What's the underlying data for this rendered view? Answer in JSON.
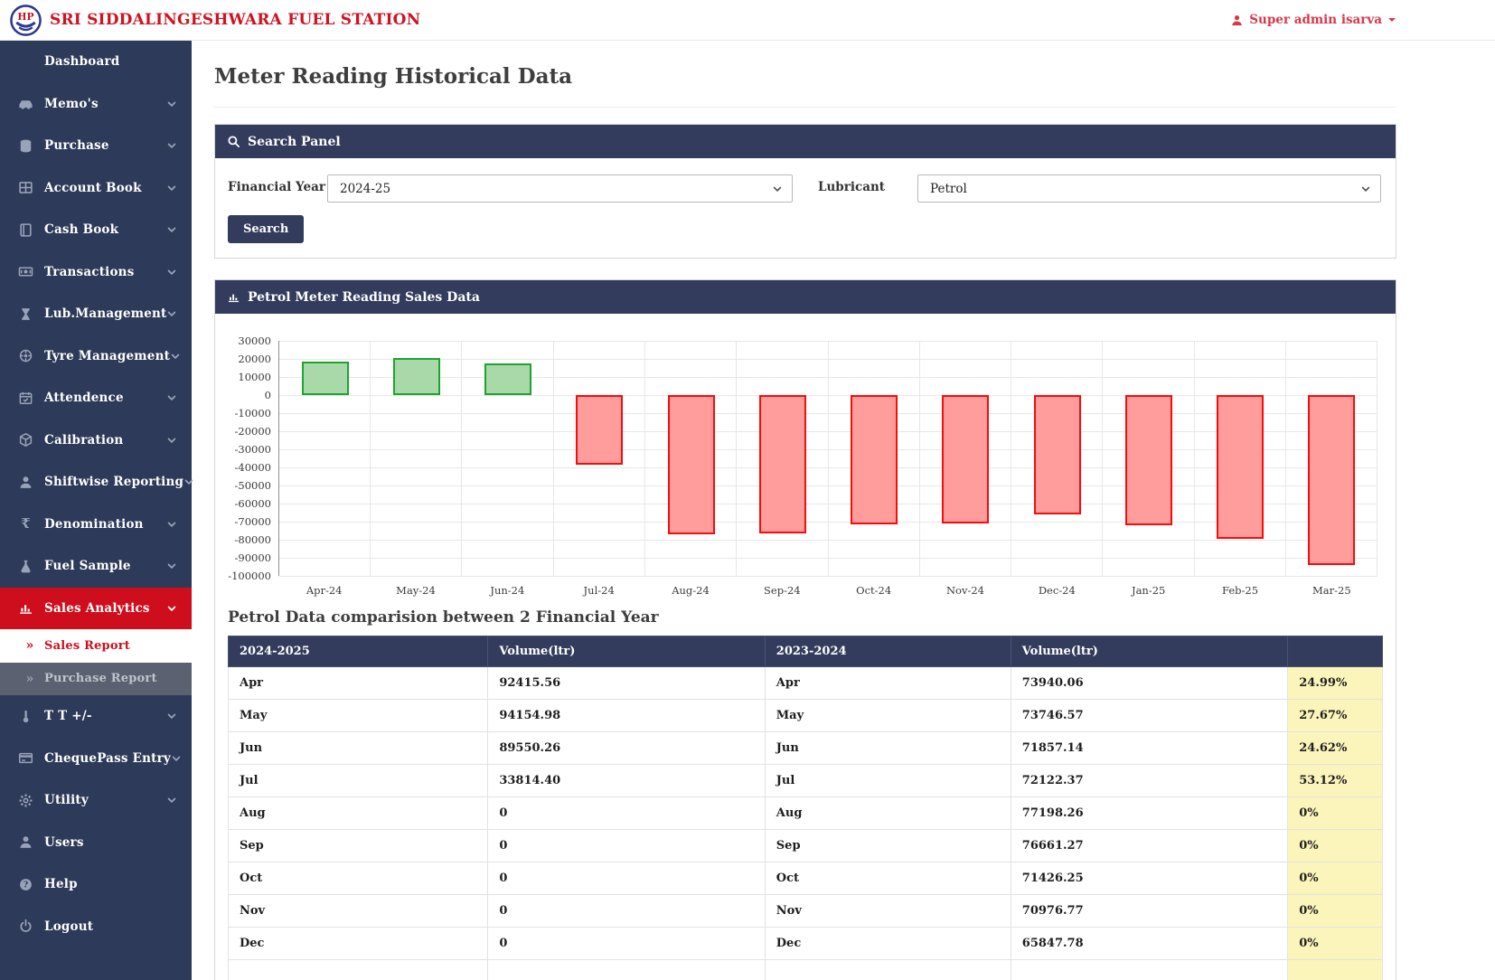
{
  "header": {
    "logo_text": "HP",
    "station_name": "SRI SIDDALINGESHWARA FUEL STATION",
    "user_menu": "Super admin isarva"
  },
  "sidebar": {
    "items": [
      {
        "label": "Dashboard",
        "icon": "",
        "expandable": false,
        "sub": false,
        "state": "normal"
      },
      {
        "label": "Memo's",
        "icon": "car-icon",
        "expandable": true,
        "sub": false,
        "state": "normal"
      },
      {
        "label": "Purchase",
        "icon": "database-icon",
        "expandable": true,
        "sub": false,
        "state": "normal"
      },
      {
        "label": "Account Book",
        "icon": "table-icon",
        "expandable": true,
        "sub": false,
        "state": "normal"
      },
      {
        "label": "Cash Book",
        "icon": "book-icon",
        "expandable": true,
        "sub": false,
        "state": "normal"
      },
      {
        "label": "Transactions",
        "icon": "money-icon",
        "expandable": true,
        "sub": false,
        "state": "normal"
      },
      {
        "label": "Lub.Management",
        "icon": "hourglass-icon",
        "expandable": true,
        "sub": false,
        "state": "normal"
      },
      {
        "label": "Tyre Management",
        "icon": "wheel-icon",
        "expandable": true,
        "sub": false,
        "state": "normal"
      },
      {
        "label": "Attendence",
        "icon": "calendar-icon",
        "expandable": true,
        "sub": false,
        "state": "normal"
      },
      {
        "label": "Calibration",
        "icon": "cube-icon",
        "expandable": true,
        "sub": false,
        "state": "normal"
      },
      {
        "label": "Shiftwise Reporting",
        "icon": "user-icon",
        "expandable": true,
        "sub": false,
        "state": "normal"
      },
      {
        "label": "Denomination",
        "icon": "rupee-icon",
        "expandable": true,
        "sub": false,
        "state": "normal"
      },
      {
        "label": "Fuel Sample",
        "icon": "flask-icon",
        "expandable": true,
        "sub": false,
        "state": "normal"
      },
      {
        "label": "Sales Analytics",
        "icon": "bar-chart-icon",
        "expandable": true,
        "sub": false,
        "state": "active"
      },
      {
        "label": "Sales Report",
        "icon": "angle-double-right-icon",
        "expandable": false,
        "sub": true,
        "state": "selected"
      },
      {
        "label": "Purchase Report",
        "icon": "angle-double-right-icon",
        "expandable": false,
        "sub": true,
        "state": "hovered"
      },
      {
        "label": "T T +/-",
        "icon": "thermometer-icon",
        "expandable": true,
        "sub": false,
        "state": "normal"
      },
      {
        "label": "ChequePass Entry",
        "icon": "credit-card-icon",
        "expandable": true,
        "sub": false,
        "state": "normal"
      },
      {
        "label": "Utility",
        "icon": "gear-icon",
        "expandable": true,
        "sub": false,
        "state": "normal"
      },
      {
        "label": "Users",
        "icon": "user-icon",
        "expandable": false,
        "sub": false,
        "state": "normal"
      },
      {
        "label": "Help",
        "icon": "question-icon",
        "expandable": false,
        "sub": false,
        "state": "normal"
      },
      {
        "label": "Logout",
        "icon": "power-icon",
        "expandable": false,
        "sub": false,
        "state": "normal"
      }
    ]
  },
  "page": {
    "title": "Meter Reading Historical Data"
  },
  "search_panel": {
    "title": "Search Panel",
    "financial_year_label": "Financial Year",
    "financial_year_value": "2024-25",
    "lubricant_label": "Lubricant",
    "lubricant_value": "Petrol",
    "search_button": "Search"
  },
  "chart_data": {
    "type": "bar",
    "title": "Petrol Meter Reading Sales Data",
    "categories": [
      "Apr-24",
      "May-24",
      "Jun-24",
      "Jul-24",
      "Aug-24",
      "Sep-24",
      "Oct-24",
      "Nov-24",
      "Dec-24",
      "Jan-25",
      "Feb-25",
      "Mar-25"
    ],
    "values": [
      18475.5,
      20408.41,
      17693.12,
      -38307.97,
      -77198.26,
      -76661.27,
      -71426.25,
      -70976.77,
      -65847.78,
      -72000,
      -79500,
      -94000
    ],
    "xlabel": "",
    "ylabel": "",
    "ylim": [
      -100000,
      30000
    ],
    "ytick_step": 10000,
    "grid": true,
    "legend": "none",
    "positive_color": "#a9d8a9",
    "positive_border": "#1ea42c",
    "negative_color": "#ff9c9c",
    "negative_border": "#f70c0c"
  },
  "comparison": {
    "heading": "Petrol Data comparision between 2 Financial Year",
    "columns": [
      "2024-2025",
      "Volume(ltr)",
      "2023-2024",
      "Volume(ltr)",
      ""
    ],
    "rows": [
      [
        "Apr",
        "92415.56",
        "Apr",
        "73940.06",
        "24.99%"
      ],
      [
        "May",
        "94154.98",
        "May",
        "73746.57",
        "27.67%"
      ],
      [
        "Jun",
        "89550.26",
        "Jun",
        "71857.14",
        "24.62%"
      ],
      [
        "Jul",
        "33814.40",
        "Jul",
        "72122.37",
        "53.12%"
      ],
      [
        "Aug",
        "0",
        "Aug",
        "77198.26",
        "0%"
      ],
      [
        "Sep",
        "0",
        "Sep",
        "76661.27",
        "0%"
      ],
      [
        "Oct",
        "0",
        "Oct",
        "71426.25",
        "0%"
      ],
      [
        "Nov",
        "0",
        "Nov",
        "70976.77",
        "0%"
      ],
      [
        "Dec",
        "0",
        "Dec",
        "65847.78",
        "0%"
      ]
    ]
  },
  "colors": {
    "navy_panel": "#333c5d",
    "sidebar_bg": "#2e3a59",
    "active_red": "#ce0e1c",
    "title_red": "#cf1220",
    "user_red": "#d5394b",
    "percent_yellow": "#fcf5bb"
  }
}
